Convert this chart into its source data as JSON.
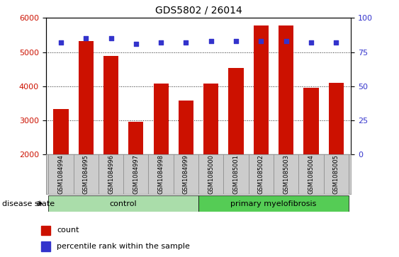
{
  "title": "GDS5802 / 26014",
  "samples": [
    "GSM1084994",
    "GSM1084995",
    "GSM1084996",
    "GSM1084997",
    "GSM1084998",
    "GSM1084999",
    "GSM1085000",
    "GSM1085001",
    "GSM1085002",
    "GSM1085003",
    "GSM1085004",
    "GSM1085005"
  ],
  "counts": [
    3320,
    5330,
    4880,
    2960,
    4080,
    3580,
    4080,
    4530,
    5770,
    5790,
    3940,
    4100
  ],
  "percentile_ranks": [
    82,
    85,
    85,
    81,
    82,
    82,
    83,
    83,
    83,
    83,
    82,
    82
  ],
  "n_control": 6,
  "n_pmf": 6,
  "ylim_left": [
    2000,
    6000
  ],
  "ylim_right": [
    0,
    100
  ],
  "yticks_left": [
    2000,
    3000,
    4000,
    5000,
    6000
  ],
  "yticks_right": [
    0,
    25,
    50,
    75,
    100
  ],
  "bar_color": "#cc1100",
  "dot_color": "#3333cc",
  "ctrl_color": "#aaddaa",
  "pmf_color": "#55cc55",
  "label_bg": "#cccccc",
  "bg_color": "#ffffff",
  "tick_color_left": "#cc1100",
  "tick_color_right": "#3333cc",
  "grid_color": "#222222",
  "legend_count": "count",
  "legend_pct": "percentile rank within the sample",
  "group_label": "disease state"
}
